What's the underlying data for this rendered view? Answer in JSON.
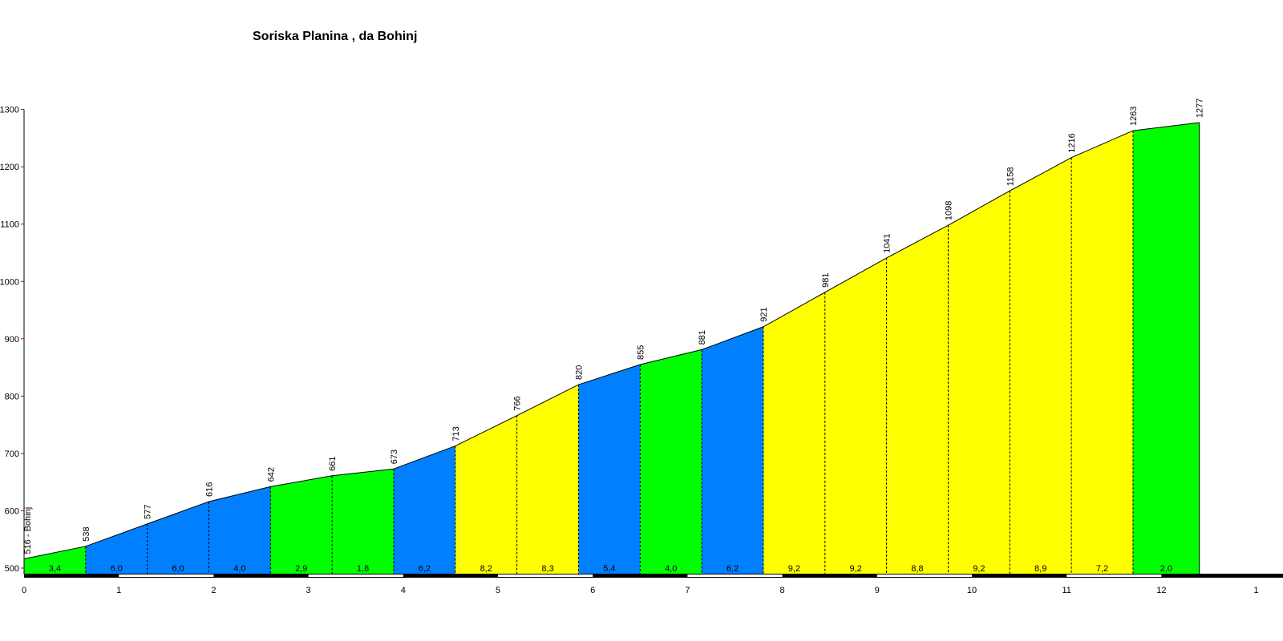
{
  "title": "Soriska Planina , da Bohinj",
  "colors": {
    "green": "#00ff00",
    "blue": "#0080ff",
    "yellow": "#ffff00"
  },
  "chart_data": {
    "type": "area",
    "title": "Soriska Planina , da Bohinj",
    "xlabel": "",
    "ylabel": "",
    "xlim": [
      0,
      13
    ],
    "ylim": [
      500,
      1300
    ],
    "y_ticks": [
      500,
      600,
      700,
      800,
      900,
      1000,
      1100,
      1200,
      1300
    ],
    "x_ticks": [
      "0",
      "1",
      "2",
      "3",
      "4",
      "5",
      "6",
      "7",
      "8",
      "9",
      "10",
      "11",
      "12",
      "1"
    ],
    "start_label": "516 - Bohinj",
    "x": [
      0,
      0.65,
      1.3,
      1.95,
      2.6,
      3.25,
      3.9,
      4.55,
      5.2,
      5.85,
      6.5,
      7.15,
      7.8,
      8.45,
      9.1,
      9.75,
      10.4,
      11.05,
      11.7,
      12.4
    ],
    "elevation": [
      516,
      538,
      577,
      616,
      642,
      661,
      673,
      713,
      766,
      820,
      855,
      881,
      921,
      981,
      1041,
      1098,
      1158,
      1216,
      1263,
      1277
    ],
    "elevation_labels": [
      "538",
      "577",
      "616",
      "642",
      "661",
      "673",
      "713",
      "766",
      "820",
      "855",
      "881",
      "921",
      "981",
      "1041",
      "1098",
      "1158",
      "1216",
      "1263",
      "1277"
    ],
    "gradients": [
      "3,4",
      "6,0",
      "6,0",
      "4,0",
      "2,9",
      "1,8",
      "6,2",
      "8,2",
      "8,3",
      "5,4",
      "4,0",
      "6,2",
      "9,2",
      "9,2",
      "8,8",
      "9,2",
      "8,9",
      "7,2",
      "2,0"
    ],
    "segment_colors": [
      "green",
      "blue",
      "blue",
      "blue",
      "green",
      "green",
      "blue",
      "yellow",
      "yellow",
      "blue",
      "green",
      "blue",
      "yellow",
      "yellow",
      "yellow",
      "yellow",
      "yellow",
      "yellow",
      "green"
    ],
    "grid": false
  }
}
